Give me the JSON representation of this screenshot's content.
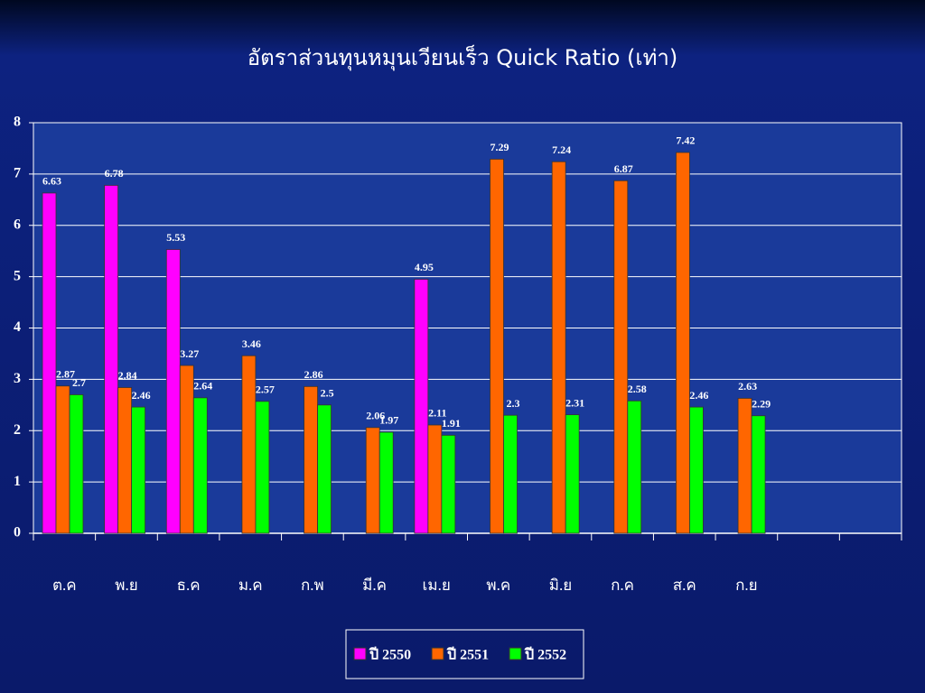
{
  "chart_data": {
    "type": "bar",
    "title": "อัตราส่วนทุนหมุนเวียนเร็ว Quick  Ratio (เท่า)",
    "categories": [
      "ต.ค",
      "พ.ย",
      "ธ.ค",
      "ม.ค",
      "ก.พ",
      "มี.ค",
      "เม.ย",
      "พ.ค",
      "มิ.ย",
      "ก.ค",
      "ส.ค",
      "ก.ย",
      null,
      null
    ],
    "series": [
      {
        "name": "ปี 2550",
        "color": "#ff00ff",
        "values": [
          6.63,
          6.78,
          5.53,
          null,
          null,
          null,
          4.95,
          null,
          null,
          null,
          null,
          null,
          null,
          null
        ]
      },
      {
        "name": "ปี 2551",
        "color": "#ff6600",
        "values": [
          2.87,
          2.84,
          3.27,
          3.46,
          2.86,
          2.06,
          2.11,
          7.29,
          7.24,
          6.87,
          7.42,
          2.63,
          null,
          null
        ]
      },
      {
        "name": "ปี 2552",
        "color": "#00ff00",
        "values": [
          2.7,
          2.46,
          2.64,
          2.57,
          2.5,
          1.97,
          1.91,
          2.3,
          2.31,
          2.58,
          2.46,
          2.29,
          null,
          null
        ]
      }
    ],
    "ylim": [
      0,
      8
    ],
    "yticks": [
      0,
      1,
      2,
      3,
      4,
      5,
      6,
      7,
      8
    ],
    "grid": true,
    "legend": "bottom"
  }
}
